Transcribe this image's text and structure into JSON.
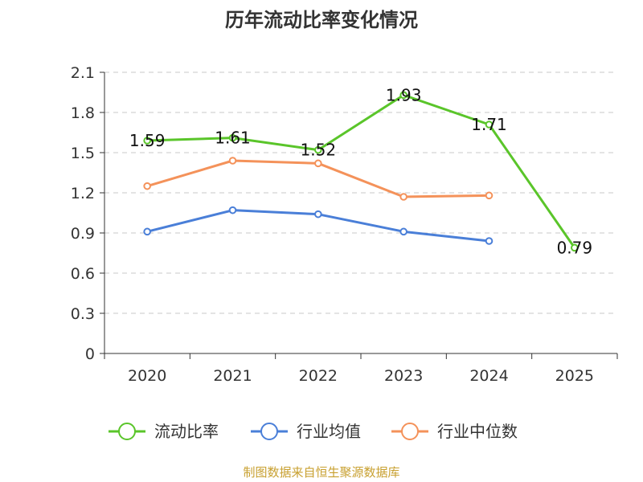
{
  "chart_data": {
    "type": "line",
    "title": "历年流动比率变化情况",
    "categories": [
      "2020",
      "2021",
      "2022",
      "2023",
      "2024",
      "2025"
    ],
    "ylim": [
      0,
      2.1
    ],
    "yticks": [
      0,
      0.3,
      0.6,
      0.9,
      1.2,
      1.5,
      1.8,
      2.1
    ],
    "ytick_labels": [
      "0",
      "0.3",
      "0.6",
      "0.9",
      "1.2",
      "1.5",
      "1.8",
      "2.1"
    ],
    "grid": "horizontal-dashed",
    "legend_position": "bottom",
    "series": [
      {
        "name": "流动比率",
        "color": "#5ac52a",
        "values": [
          1.59,
          1.61,
          1.52,
          1.93,
          1.71,
          0.79
        ],
        "labels": [
          "1.59",
          "1.61",
          "1.52",
          "1.93",
          "1.71",
          "0.79"
        ]
      },
      {
        "name": "行业均值",
        "color": "#4a7fd8",
        "values": [
          0.91,
          1.07,
          1.04,
          0.91,
          0.84,
          null
        ]
      },
      {
        "name": "行业中位数",
        "color": "#f4925a",
        "values": [
          1.25,
          1.44,
          1.42,
          1.17,
          1.18,
          null
        ]
      }
    ]
  },
  "footer": {
    "source": "制图数据来自恒生聚源数据库"
  }
}
